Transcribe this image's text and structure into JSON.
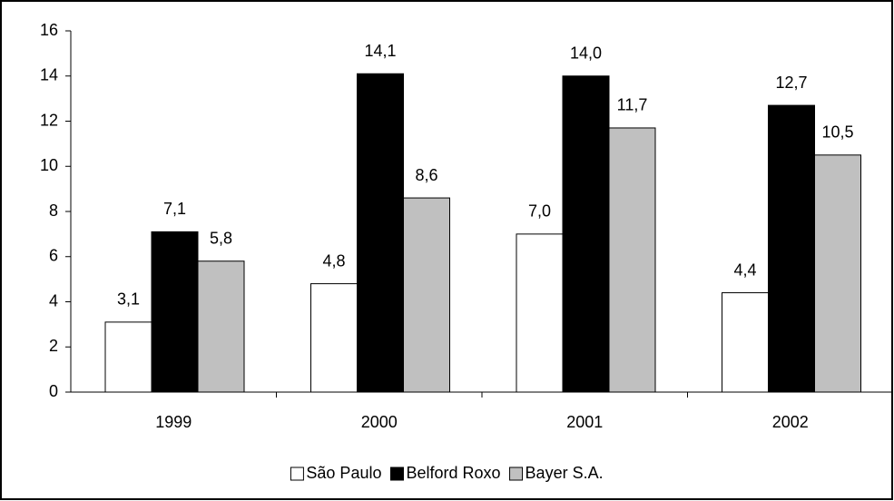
{
  "chart_data": {
    "type": "bar",
    "categories": [
      "1999",
      "2000",
      "2001",
      "2002"
    ],
    "series": [
      {
        "name": "São Paulo",
        "color": "#ffffff",
        "values": [
          3.1,
          4.8,
          7.0,
          4.4
        ],
        "value_labels": [
          "3,1",
          "4,8",
          "7,0",
          "4,4"
        ]
      },
      {
        "name": "Belford Roxo",
        "color": "#000000",
        "values": [
          7.1,
          14.1,
          14.0,
          12.7
        ],
        "value_labels": [
          "7,1",
          "14,1",
          "14,0",
          "12,7"
        ]
      },
      {
        "name": "Bayer S.A.",
        "color": "#c0c0c0",
        "values": [
          5.8,
          8.6,
          11.7,
          10.5
        ],
        "value_labels": [
          "5,8",
          "8,6",
          "11,7",
          "10,5"
        ]
      }
    ],
    "ylim": [
      0,
      16
    ],
    "yticks": [
      0,
      2,
      4,
      6,
      8,
      10,
      12,
      14,
      16
    ],
    "grid": false,
    "legend": "bottom"
  }
}
